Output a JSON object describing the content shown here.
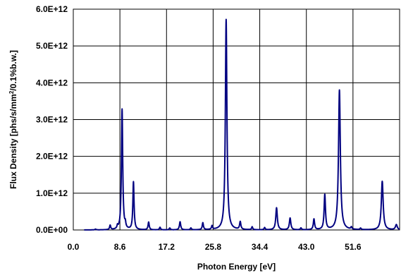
{
  "chart_data": {
    "type": "line",
    "xlabel": "Photon Energy [eV]",
    "ylabel_parts": {
      "main": "Flux Density [phs/s/mm",
      "sup": "2",
      "tail": "/0.1%b.w.]"
    },
    "xlim": [
      0,
      60.2
    ],
    "ylim": [
      0,
      6000000000000.0
    ],
    "x_ticks": [
      "0.0",
      "8.6",
      "17.2",
      "25.8",
      "34.4",
      "43.0",
      "51.6"
    ],
    "x_tick_values": [
      0,
      8.6,
      17.2,
      25.8,
      34.4,
      43.0,
      51.6
    ],
    "y_ticks": [
      "0.0E+00",
      "1.0E+12",
      "2.0E+12",
      "3.0E+12",
      "4.0E+12",
      "5.0E+12",
      "6.0E+12"
    ],
    "y_tick_values": [
      0,
      1000000000000.0,
      2000000000000.0,
      3000000000000.0,
      4000000000000.0,
      5000000000000.0,
      6000000000000.0
    ],
    "grid": true,
    "series": [
      {
        "color": "#000080",
        "x_start": 2.0,
        "x_end": 60.2,
        "peaks": [
          {
            "x": 4.1,
            "y": 20000000000.0,
            "w": 0.12
          },
          {
            "x": 6.8,
            "y": 120000000000.0,
            "w": 0.12
          },
          {
            "x": 8.15,
            "y": 80000000000.0,
            "w": 0.1
          },
          {
            "x": 9.0,
            "y": 3280000000000.0,
            "w": 0.14
          },
          {
            "x": 9.6,
            "y": 120000000000.0,
            "w": 0.1
          },
          {
            "x": 11.1,
            "y": 1300000000000.0,
            "w": 0.13
          },
          {
            "x": 13.9,
            "y": 210000000000.0,
            "w": 0.13
          },
          {
            "x": 16.0,
            "y": 70000000000.0,
            "w": 0.12
          },
          {
            "x": 17.8,
            "y": 50000000000.0,
            "w": 0.12
          },
          {
            "x": 19.7,
            "y": 220000000000.0,
            "w": 0.14
          },
          {
            "x": 21.7,
            "y": 50000000000.0,
            "w": 0.12
          },
          {
            "x": 23.9,
            "y": 190000000000.0,
            "w": 0.13
          },
          {
            "x": 25.6,
            "y": 100000000000.0,
            "w": 0.12
          },
          {
            "x": 28.2,
            "y": 5720000000000.0,
            "w": 0.17
          },
          {
            "x": 30.8,
            "y": 210000000000.0,
            "w": 0.14
          },
          {
            "x": 33.0,
            "y": 80000000000.0,
            "w": 0.12
          },
          {
            "x": 35.3,
            "y": 60000000000.0,
            "w": 0.12
          },
          {
            "x": 37.5,
            "y": 600000000000.0,
            "w": 0.17
          },
          {
            "x": 40.0,
            "y": 320000000000.0,
            "w": 0.16
          },
          {
            "x": 42.0,
            "y": 50000000000.0,
            "w": 0.12
          },
          {
            "x": 44.4,
            "y": 290000000000.0,
            "w": 0.14
          },
          {
            "x": 46.4,
            "y": 950000000000.0,
            "w": 0.15
          },
          {
            "x": 49.1,
            "y": 3800000000000.0,
            "w": 0.2
          },
          {
            "x": 51.3,
            "y": 60000000000.0,
            "w": 0.12
          },
          {
            "x": 53.0,
            "y": 40000000000.0,
            "w": 0.12
          },
          {
            "x": 57.0,
            "y": 1320000000000.0,
            "w": 0.2
          },
          {
            "x": 59.6,
            "y": 140000000000.0,
            "w": 0.2
          }
        ]
      }
    ]
  }
}
